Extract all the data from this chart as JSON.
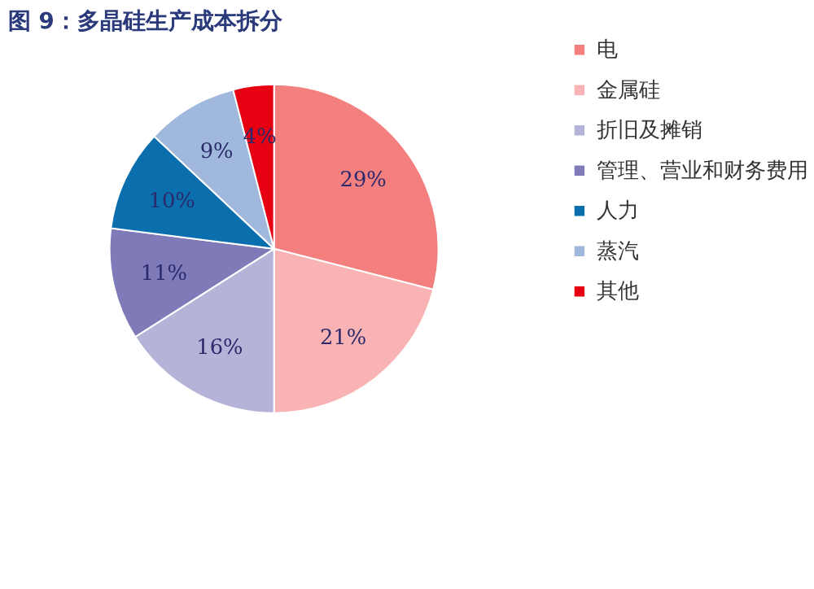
{
  "chart_data": {
    "type": "pie",
    "title": "图 9：多晶硅生产成本拆分",
    "categories": [
      "电",
      "金属硅",
      "折旧及摊销",
      "管理、营业和财务费用",
      "人力",
      "蒸汽",
      "其他"
    ],
    "values": [
      29,
      21,
      16,
      11,
      10,
      9,
      4
    ],
    "colors": [
      "#f47f7f",
      "#f9b3b5",
      "#b5b3d8",
      "#7f7ab8",
      "#0b6fae",
      "#9fb8dc",
      "#e60012"
    ],
    "value_labels": [
      "29%",
      "21%",
      "16%",
      "11%",
      "10%",
      "9%",
      "4%"
    ],
    "legend": "right"
  }
}
